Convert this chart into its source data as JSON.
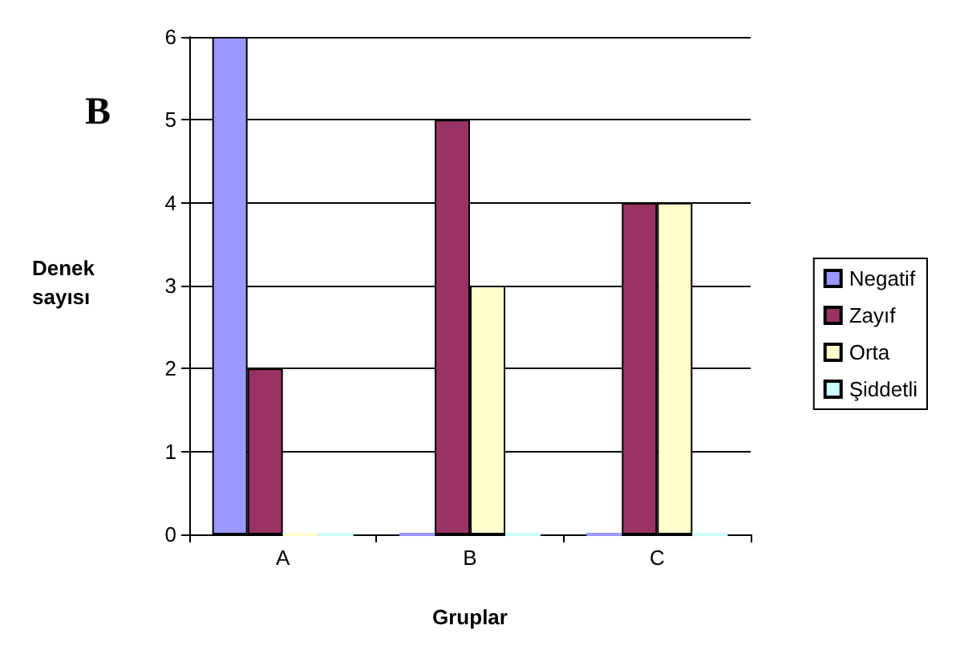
{
  "chart_data": {
    "type": "bar",
    "title": "B",
    "xlabel": "Gruplar",
    "ylabel": "Denek sayısı",
    "categories": [
      "A",
      "B",
      "C"
    ],
    "series": [
      {
        "name": "Negatif",
        "color": "#9999ff",
        "values": [
          6,
          0,
          0
        ]
      },
      {
        "name": "Zayıf",
        "color": "#993366",
        "values": [
          2,
          5,
          4
        ]
      },
      {
        "name": "Orta",
        "color": "#ffffcc",
        "values": [
          0,
          3,
          4
        ]
      },
      {
        "name": "Şiddetli",
        "color": "#ccffff",
        "values": [
          0,
          0,
          0
        ]
      }
    ],
    "ylim": [
      0,
      6
    ],
    "yticks": [
      0,
      1,
      2,
      3,
      4,
      5,
      6
    ],
    "grid": "y",
    "legend": "right"
  }
}
